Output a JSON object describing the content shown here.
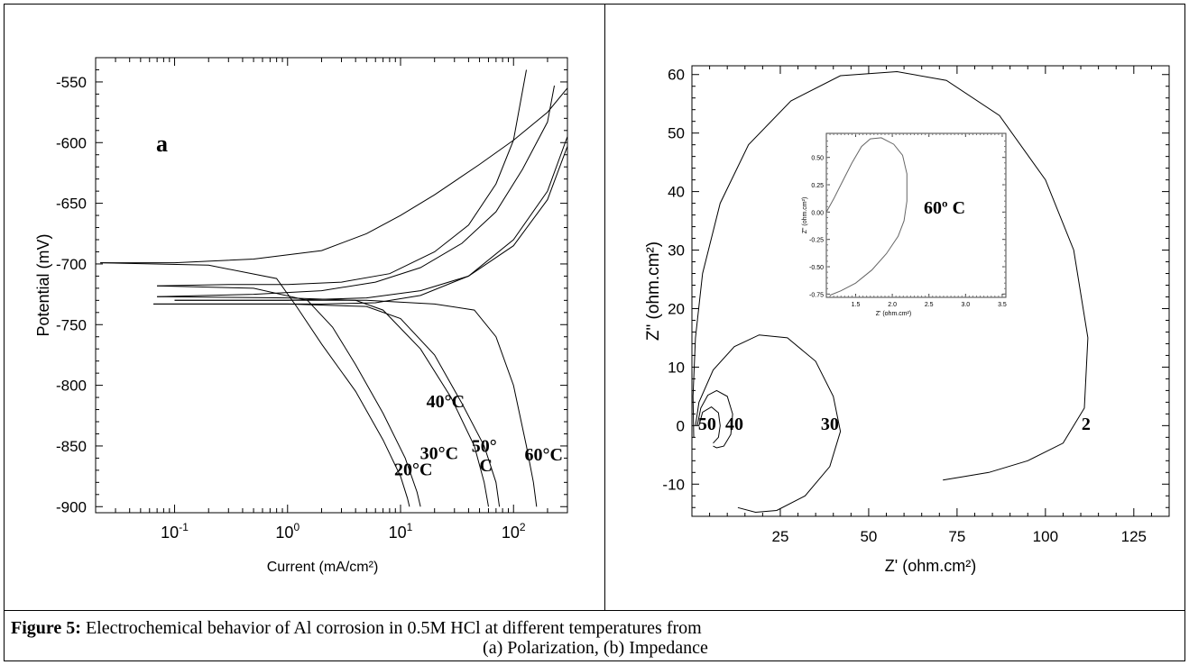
{
  "caption": {
    "label": "Figure 5:",
    "text": " Electrochemical behavior of Al corrosion in 0.5M HCl at different temperatures from",
    "line2": "(a) Polarization, (b) Impedance"
  },
  "chart_data": [
    {
      "type": "line",
      "panel_label": "a",
      "xlabel": "Current (mA/cm²)",
      "ylabel": "Potential (mV)",
      "x_scale": "log",
      "xlim": [
        0.02,
        300
      ],
      "ylim": [
        -905,
        -530
      ],
      "x_ticks": [
        {
          "value": 0.1,
          "base": "10",
          "exp": "-1"
        },
        {
          "value": 1,
          "base": "10",
          "exp": "0"
        },
        {
          "value": 10,
          "base": "10",
          "exp": "1"
        },
        {
          "value": 100,
          "base": "10",
          "exp": "2"
        }
      ],
      "y_ticks": [
        -550,
        -600,
        -650,
        -700,
        -750,
        -800,
        -850,
        -900
      ],
      "grid": false,
      "annotations": [
        {
          "text": "20°C",
          "x": 13,
          "y": -874
        },
        {
          "text": "30°C",
          "x": 22,
          "y": -861
        },
        {
          "text": "40°C",
          "x": 25,
          "y": -818
        },
        {
          "text": "50°",
          "x": 55,
          "y": -855
        },
        {
          "text": "C",
          "x": 57,
          "y": -871
        },
        {
          "text": "60°C",
          "x": 185,
          "y": -862
        }
      ],
      "series": [
        {
          "anodic": [
            [
              0.022,
              -699
            ],
            [
              0.1,
              -699
            ],
            [
              0.5,
              -696
            ],
            [
              2,
              -689
            ],
            [
              5,
              -675
            ],
            [
              10,
              -660
            ],
            [
              20,
              -643
            ],
            [
              50,
              -618
            ],
            [
              100,
              -598
            ],
            [
              200,
              -575
            ],
            [
              300,
              -555
            ]
          ],
          "cathodic": [
            [
              0.022,
              -699
            ],
            [
              0.2,
              -701
            ],
            [
              0.8,
              -712
            ],
            [
              1.2,
              -735
            ],
            [
              2,
              -766
            ],
            [
              4,
              -805
            ],
            [
              7,
              -845
            ],
            [
              10,
              -875
            ],
            [
              11.5,
              -893
            ],
            [
              12,
              -900
            ]
          ]
        },
        {
          "anodic": [
            [
              0.07,
              -718
            ],
            [
              0.3,
              -717
            ],
            [
              1,
              -717
            ],
            [
              3,
              -715
            ],
            [
              8,
              -708
            ],
            [
              20,
              -690
            ],
            [
              40,
              -668
            ],
            [
              70,
              -634
            ],
            [
              100,
              -598
            ],
            [
              130,
              -540
            ]
          ],
          "cathodic": [
            [
              0.07,
              -718
            ],
            [
              0.5,
              -720
            ],
            [
              1.5,
              -730
            ],
            [
              2.5,
              -752
            ],
            [
              4,
              -783
            ],
            [
              7,
              -823
            ],
            [
              11,
              -860
            ],
            [
              14,
              -888
            ],
            [
              15,
              -900
            ]
          ]
        },
        {
          "anodic": [
            [
              0.07,
              -727
            ],
            [
              0.5,
              -725
            ],
            [
              2,
              -722
            ],
            [
              6,
              -715
            ],
            [
              15,
              -703
            ],
            [
              35,
              -683
            ],
            [
              70,
              -657
            ],
            [
              120,
              -622
            ],
            [
              200,
              -583
            ],
            [
              230,
              -553
            ]
          ],
          "cathodic": [
            [
              0.07,
              -727
            ],
            [
              1,
              -728
            ],
            [
              4,
              -730
            ],
            [
              7,
              -738
            ],
            [
              15,
              -770
            ],
            [
              28,
              -810
            ],
            [
              45,
              -850
            ],
            [
              55,
              -880
            ],
            [
              60,
              -900
            ]
          ]
        },
        {
          "anodic": [
            [
              0.065,
              -733
            ],
            [
              0.5,
              -733
            ],
            [
              2,
              -733
            ],
            [
              6,
              -732
            ],
            [
              15,
              -726
            ],
            [
              40,
              -710
            ],
            [
              100,
              -680
            ],
            [
              200,
              -640
            ],
            [
              300,
              -595
            ]
          ],
          "cathodic": [
            [
              0.065,
              -733
            ],
            [
              1,
              -733
            ],
            [
              5,
              -735
            ],
            [
              10,
              -745
            ],
            [
              20,
              -775
            ],
            [
              35,
              -815
            ],
            [
              55,
              -850
            ],
            [
              70,
              -880
            ],
            [
              75,
              -900
            ]
          ]
        },
        {
          "anodic": [
            [
              0.1,
              -730
            ],
            [
              1,
              -730
            ],
            [
              5,
              -728
            ],
            [
              15,
              -722
            ],
            [
              40,
              -710
            ],
            [
              100,
              -685
            ],
            [
              200,
              -647
            ],
            [
              300,
              -603
            ]
          ],
          "cathodic": [
            [
              0.1,
              -730
            ],
            [
              5,
              -730
            ],
            [
              20,
              -733
            ],
            [
              45,
              -738
            ],
            [
              70,
              -760
            ],
            [
              100,
              -800
            ],
            [
              130,
              -850
            ],
            [
              150,
              -880
            ],
            [
              160,
              -900
            ]
          ]
        }
      ]
    },
    {
      "type": "line",
      "xlabel": "Z' (ohm.cm²)",
      "ylabel": "Z\" (ohm.cm²)",
      "xlim": [
        0,
        135
      ],
      "ylim": [
        -15.5,
        61.5
      ],
      "x_ticks": [
        25,
        50,
        75,
        100,
        125
      ],
      "y_ticks": [
        60,
        50,
        40,
        30,
        20,
        10,
        0,
        -10
      ],
      "grid": false,
      "annotations": [
        {
          "text": "50",
          "x": 4.3,
          "y": -0.7
        },
        {
          "text": "40",
          "x": 12.0,
          "y": -0.7
        },
        {
          "text": "30",
          "x": 39.0,
          "y": -0.7
        },
        {
          "text": "2",
          "x": 111.5,
          "y": -0.7
        }
      ],
      "series": [
        {
          "points": [
            [
              0.5,
              -2
            ],
            [
              0.3,
              5
            ],
            [
              1,
              15
            ],
            [
              3,
              26
            ],
            [
              8,
              38
            ],
            [
              16,
              48
            ],
            [
              28,
              55.5
            ],
            [
              42,
              59.8
            ],
            [
              58,
              60.5
            ],
            [
              72,
              59
            ],
            [
              87,
              53
            ],
            [
              100,
              42
            ],
            [
              108,
              30
            ],
            [
              112,
              15
            ],
            [
              111,
              3
            ],
            [
              105,
              -3
            ],
            [
              95,
              -6
            ],
            [
              84,
              -8
            ],
            [
              76,
              -8.8
            ],
            [
              71,
              -9.3
            ]
          ]
        },
        {
          "points": [
            [
              1,
              0
            ],
            [
              2,
              4
            ],
            [
              6,
              9.5
            ],
            [
              12,
              13.5
            ],
            [
              19,
              15.5
            ],
            [
              27,
              15
            ],
            [
              35,
              11
            ],
            [
              40,
              5
            ],
            [
              42,
              -1
            ],
            [
              39,
              -7
            ],
            [
              32,
              -12
            ],
            [
              24,
              -14.5
            ],
            [
              18,
              -14.8
            ],
            [
              13,
              -14
            ]
          ]
        },
        {
          "points": [
            [
              1.5,
              0
            ],
            [
              2.5,
              3
            ],
            [
              4.5,
              5.2
            ],
            [
              7,
              6
            ],
            [
              10,
              5
            ],
            [
              11.5,
              2
            ],
            [
              11,
              -1.5
            ],
            [
              9,
              -3.5
            ],
            [
              7,
              -3.8
            ],
            [
              6,
              -3.5
            ]
          ]
        },
        {
          "points": [
            [
              2,
              0
            ],
            [
              3,
              2.3
            ],
            [
              5.5,
              3.2
            ],
            [
              7.5,
              2.2
            ],
            [
              8,
              0
            ],
            [
              7.5,
              -2
            ],
            [
              6,
              -3
            ]
          ]
        }
      ],
      "inset": {
        "title": "60º C",
        "xlabel": "Z' (ohm.cm²)",
        "ylabel": "Z\" (ohm.cm²)",
        "xlim": [
          1.1,
          3.55
        ],
        "ylim": [
          -0.78,
          0.72
        ],
        "x_ticks": [
          1.5,
          2.0,
          2.5,
          3.0,
          3.5
        ],
        "y_ticks": [
          0.5,
          0.25,
          0.0,
          -0.25,
          -0.5,
          -0.75
        ],
        "points": [
          [
            1.1,
            0.0
          ],
          [
            1.2,
            0.12
          ],
          [
            1.32,
            0.28
          ],
          [
            1.45,
            0.45
          ],
          [
            1.58,
            0.6
          ],
          [
            1.7,
            0.67
          ],
          [
            1.85,
            0.68
          ],
          [
            2.02,
            0.62
          ],
          [
            2.14,
            0.52
          ],
          [
            2.2,
            0.35
          ],
          [
            2.2,
            0.1
          ],
          [
            2.16,
            -0.08
          ],
          [
            2.08,
            -0.22
          ],
          [
            1.92,
            -0.38
          ],
          [
            1.72,
            -0.53
          ],
          [
            1.5,
            -0.65
          ],
          [
            1.3,
            -0.72
          ],
          [
            1.15,
            -0.76
          ]
        ]
      }
    }
  ]
}
